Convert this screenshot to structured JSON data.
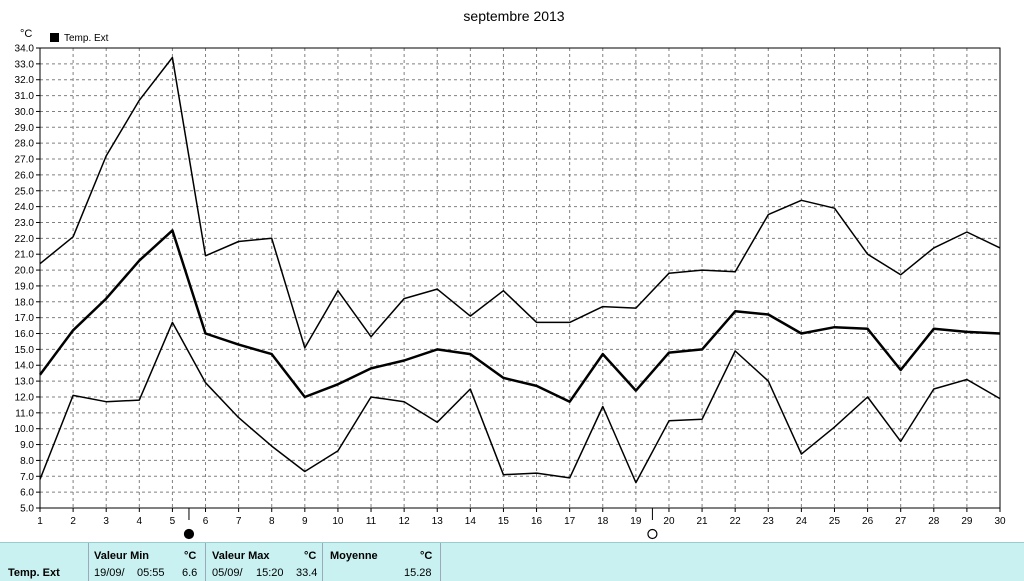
{
  "chart_data": {
    "type": "line",
    "title": "septembre 2013",
    "ylabel": "°C",
    "legend": "Temp. Ext",
    "legend_position": "top-left",
    "grid": true,
    "ylim": [
      5.0,
      34.0
    ],
    "yticks": [
      "5.0",
      "6.0",
      "7.0",
      "8.0",
      "9.0",
      "10.0",
      "11.0",
      "12.0",
      "13.0",
      "14.0",
      "15.0",
      "16.0",
      "17.0",
      "18.0",
      "19.0",
      "20.0",
      "21.0",
      "22.0",
      "23.0",
      "24.0",
      "25.0",
      "26.0",
      "27.0",
      "28.0",
      "29.0",
      "30.0",
      "31.0",
      "32.0",
      "33.0",
      "34.0"
    ],
    "x": [
      1,
      2,
      3,
      4,
      5,
      6,
      7,
      8,
      9,
      10,
      11,
      12,
      13,
      14,
      15,
      16,
      17,
      18,
      19,
      20,
      21,
      22,
      23,
      24,
      25,
      26,
      27,
      28,
      29,
      30
    ],
    "series": [
      {
        "role": "max",
        "values": [
          20.4,
          22.1,
          27.2,
          30.7,
          33.4,
          20.9,
          21.8,
          22.0,
          15.1,
          18.7,
          15.8,
          18.2,
          18.8,
          17.1,
          18.7,
          16.7,
          16.7,
          17.7,
          17.6,
          19.8,
          20.0,
          19.9,
          23.5,
          24.4,
          23.9,
          21.0,
          19.7,
          21.4,
          22.4,
          21.4
        ]
      },
      {
        "role": "mean",
        "values": [
          13.4,
          16.2,
          18.2,
          20.6,
          22.5,
          16.0,
          15.3,
          14.7,
          12.0,
          12.8,
          13.8,
          14.3,
          15.0,
          14.7,
          13.2,
          12.7,
          11.7,
          14.7,
          12.4,
          14.8,
          15.0,
          17.4,
          17.2,
          16.0,
          16.4,
          16.3,
          13.7,
          16.3,
          16.1,
          16.0
        ]
      },
      {
        "role": "min",
        "values": [
          6.8,
          12.1,
          11.7,
          11.8,
          16.7,
          12.9,
          10.7,
          8.9,
          7.3,
          8.6,
          12.0,
          11.7,
          10.4,
          12.5,
          7.1,
          7.2,
          6.9,
          11.4,
          6.6,
          10.5,
          10.6,
          14.9,
          13.0,
          8.4,
          10.1,
          12.0,
          9.2,
          12.5,
          13.1,
          11.9
        ]
      }
    ],
    "markers": [
      {
        "x": 5.5,
        "symbol": "filled-circle"
      },
      {
        "x": 19.5,
        "symbol": "open-circle"
      }
    ]
  },
  "footer": {
    "row_label": "Temp. Ext",
    "min_head": "Valeur Min",
    "min_unit": "°C",
    "min_date": "19/09/",
    "min_time": "05:55",
    "min_value": "6.6",
    "max_head": "Valeur Max",
    "max_unit": "°C",
    "max_date": "05/09/",
    "max_time": "15:20",
    "max_value": "33.4",
    "avg_head": "Moyenne",
    "avg_unit": "°C",
    "avg_value": "15.28"
  },
  "colors": {
    "line": "#000000",
    "grid": "#808080",
    "footer_bg": "#c9f1f1"
  }
}
